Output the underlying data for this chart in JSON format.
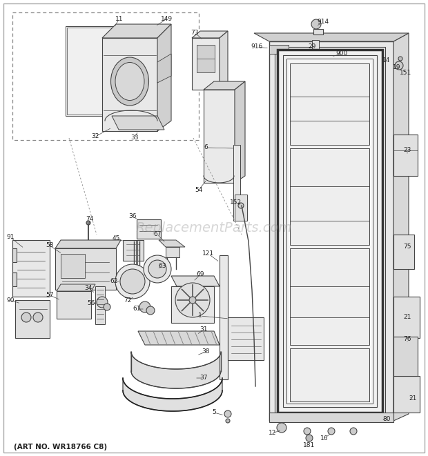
{
  "art_no": "(ART NO. WR18766 C8)",
  "watermark": "ReplacementParts.com",
  "bg_color": "#f5f5f0",
  "fig_width": 6.2,
  "fig_height": 6.61,
  "dpi": 100,
  "line_color": "#444444",
  "label_color": "#222222",
  "label_fontsize": 6.5,
  "watermark_color": "#999999",
  "watermark_alpha": 0.4,
  "border_color": "#888888"
}
